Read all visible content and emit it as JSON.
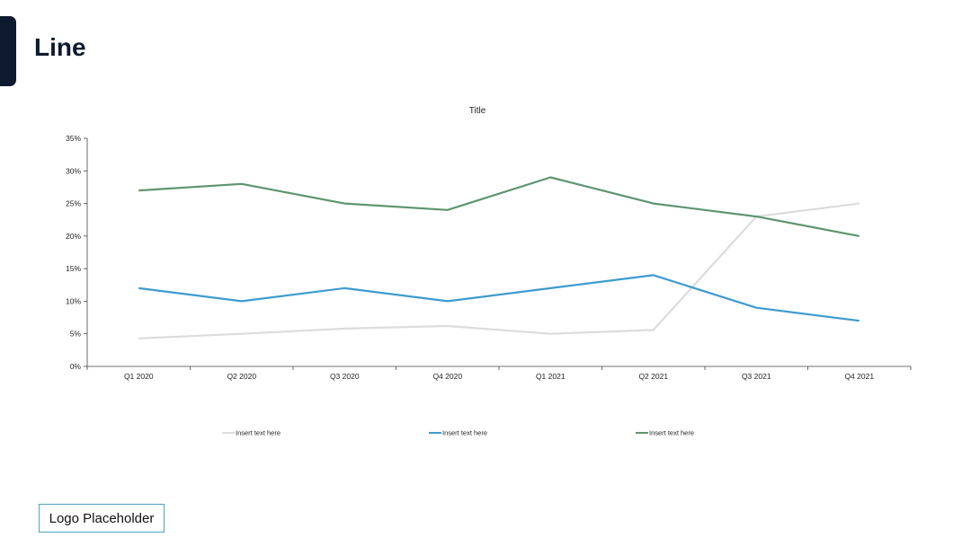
{
  "page": {
    "title": "Line",
    "logo_text": "Logo Placeholder"
  },
  "colors": {
    "accent": "#0e1b2e",
    "logo_border": "#4aa3c8",
    "axis": "#444444"
  },
  "chart_data": {
    "type": "line",
    "title": "Title",
    "xlabel": "",
    "ylabel": "",
    "categories": [
      "Q1 2020",
      "Q2 2020",
      "Q3 2020",
      "Q4 2020",
      "Q1 2021",
      "Q2 2021",
      "Q3 2021",
      "Q4 2021"
    ],
    "y_ticks": [
      "0%",
      "5%",
      "10%",
      "15%",
      "20%",
      "25%",
      "30%",
      "35%"
    ],
    "ylim": [
      0,
      35
    ],
    "y_unit": "%",
    "grid": false,
    "legend_position": "bottom",
    "series": [
      {
        "name": "Insert text here",
        "color": "#dcdcdc",
        "values": [
          4.3,
          5.0,
          5.8,
          6.2,
          5.0,
          5.6,
          23.0,
          25.0
        ]
      },
      {
        "name": "Insert text here",
        "color": "#3e9bd0",
        "values": [
          12.0,
          10.0,
          12.0,
          10.0,
          12.0,
          14.0,
          9.0,
          7.0
        ]
      },
      {
        "name": "Insert text here",
        "color": "#5e9470",
        "values": [
          27.0,
          28.0,
          25.0,
          24.0,
          29.0,
          25.0,
          23.0,
          20.0
        ]
      }
    ]
  }
}
